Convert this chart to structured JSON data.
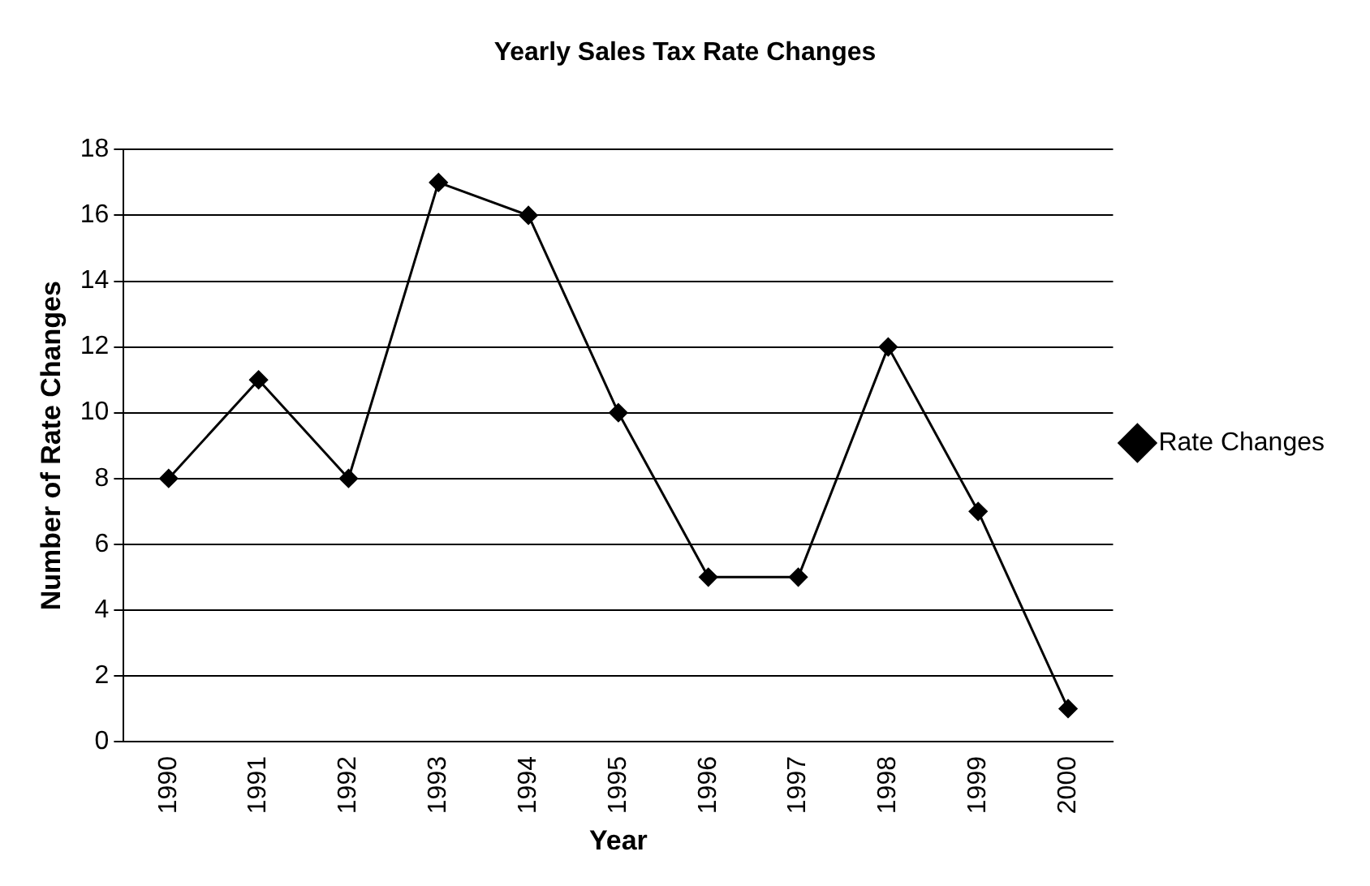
{
  "chart_data": {
    "type": "line",
    "title": "Yearly Sales Tax Rate Changes",
    "xlabel": "Year",
    "ylabel": "Number of Rate Changes",
    "categories": [
      "1990",
      "1991",
      "1992",
      "1993",
      "1994",
      "1995",
      "1996",
      "1997",
      "1998",
      "1999",
      "2000"
    ],
    "series": [
      {
        "name": "Rate Changes",
        "color": "#000000",
        "values": [
          8,
          11,
          8,
          17,
          16,
          10,
          5,
          5,
          12,
          7,
          1
        ]
      }
    ],
    "ylim": [
      0,
      18
    ],
    "yticks": [
      0,
      2,
      4,
      6,
      8,
      10,
      12,
      14,
      16,
      18
    ],
    "grid": "y",
    "legend": "right",
    "marker": "diamond",
    "line_style": "solid"
  }
}
